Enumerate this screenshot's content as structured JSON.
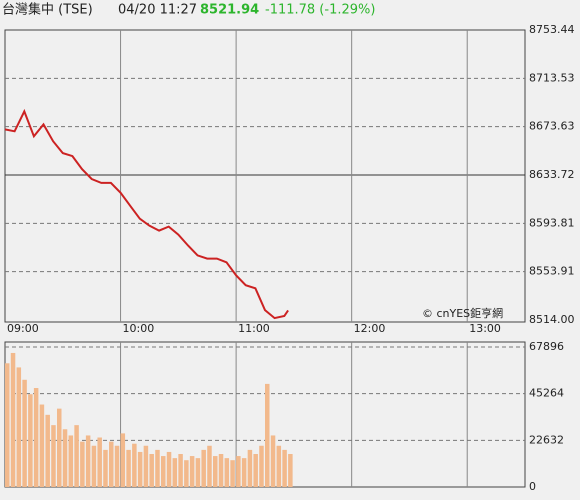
{
  "header": {
    "name": "台灣集中 (TSE)",
    "time": "04/20 11:27",
    "price": "8521.94",
    "change": "-111.78 (-1.29%)"
  },
  "chart_data": [
    {
      "type": "line",
      "color": "#cc2222",
      "watermark": "© cnYES鉅亨網",
      "x": [
        "09:00",
        "09:05",
        "09:10",
        "09:15",
        "09:20",
        "09:25",
        "09:30",
        "09:35",
        "09:40",
        "09:45",
        "09:50",
        "09:55",
        "10:00",
        "10:05",
        "10:10",
        "10:15",
        "10:20",
        "10:25",
        "10:30",
        "10:35",
        "10:40",
        "10:45",
        "10:50",
        "10:55",
        "11:00",
        "11:05",
        "11:10",
        "11:15",
        "11:20",
        "11:25",
        "11:27"
      ],
      "values": [
        8671.4,
        8669.8,
        8686.2,
        8665.7,
        8675.5,
        8661.6,
        8651.8,
        8649.3,
        8638.6,
        8630.4,
        8627.2,
        8627.2,
        8619.0,
        8608.3,
        8597.6,
        8591.9,
        8587.8,
        8591.1,
        8584.5,
        8575.5,
        8567.3,
        8564.7,
        8564.7,
        8561.6,
        8550.9,
        8542.7,
        8540.2,
        8522.2,
        8515.6,
        8517.3,
        8521.94
      ],
      "xlim": [
        "09:00",
        "13:30"
      ],
      "xticks": [
        "09:00",
        "10:00",
        "11:00",
        "12:00",
        "13:00"
      ],
      "ylim": [
        8514,
        8753.44
      ],
      "yticks": [
        {
          "value": 8514,
          "label": "8514.00"
        },
        8553.91,
        8593.81,
        8633.72,
        8673.63,
        8713.53,
        8753.44
      ]
    },
    {
      "type": "bar",
      "color": "#f2b98c",
      "x": [
        "09:00",
        "09:03",
        "09:06",
        "09:09",
        "09:12",
        "09:15",
        "09:18",
        "09:21",
        "09:24",
        "09:27",
        "09:30",
        "09:33",
        "09:36",
        "09:39",
        "09:42",
        "09:45",
        "09:48",
        "09:51",
        "09:54",
        "09:57",
        "10:00",
        "10:03",
        "10:06",
        "10:09",
        "10:12",
        "10:15",
        "10:18",
        "10:21",
        "10:24",
        "10:27",
        "10:30",
        "10:33",
        "10:36",
        "10:39",
        "10:42",
        "10:45",
        "10:48",
        "10:51",
        "10:54",
        "10:57",
        "11:00",
        "11:03",
        "11:06",
        "11:09",
        "11:12",
        "11:15",
        "11:18",
        "11:21",
        "11:24",
        "11:27"
      ],
      "values": [
        60000,
        65000,
        58000,
        52000,
        45000,
        48000,
        40000,
        35000,
        30000,
        38000,
        28000,
        25000,
        30000,
        22000,
        25000,
        20000,
        24000,
        18000,
        22000,
        20000,
        26000,
        18000,
        21000,
        17000,
        20000,
        16000,
        18000,
        15000,
        17000,
        14000,
        16000,
        13000,
        15000,
        14000,
        18000,
        20000,
        15000,
        16000,
        14000,
        13000,
        15000,
        14000,
        18000,
        16000,
        20000,
        50000,
        25000,
        20000,
        18000,
        16000
      ],
      "xlim": [
        "09:00",
        "13:30"
      ],
      "ylim": [
        0,
        67896
      ],
      "yticks": [
        0,
        22632,
        45264,
        67896
      ]
    }
  ]
}
